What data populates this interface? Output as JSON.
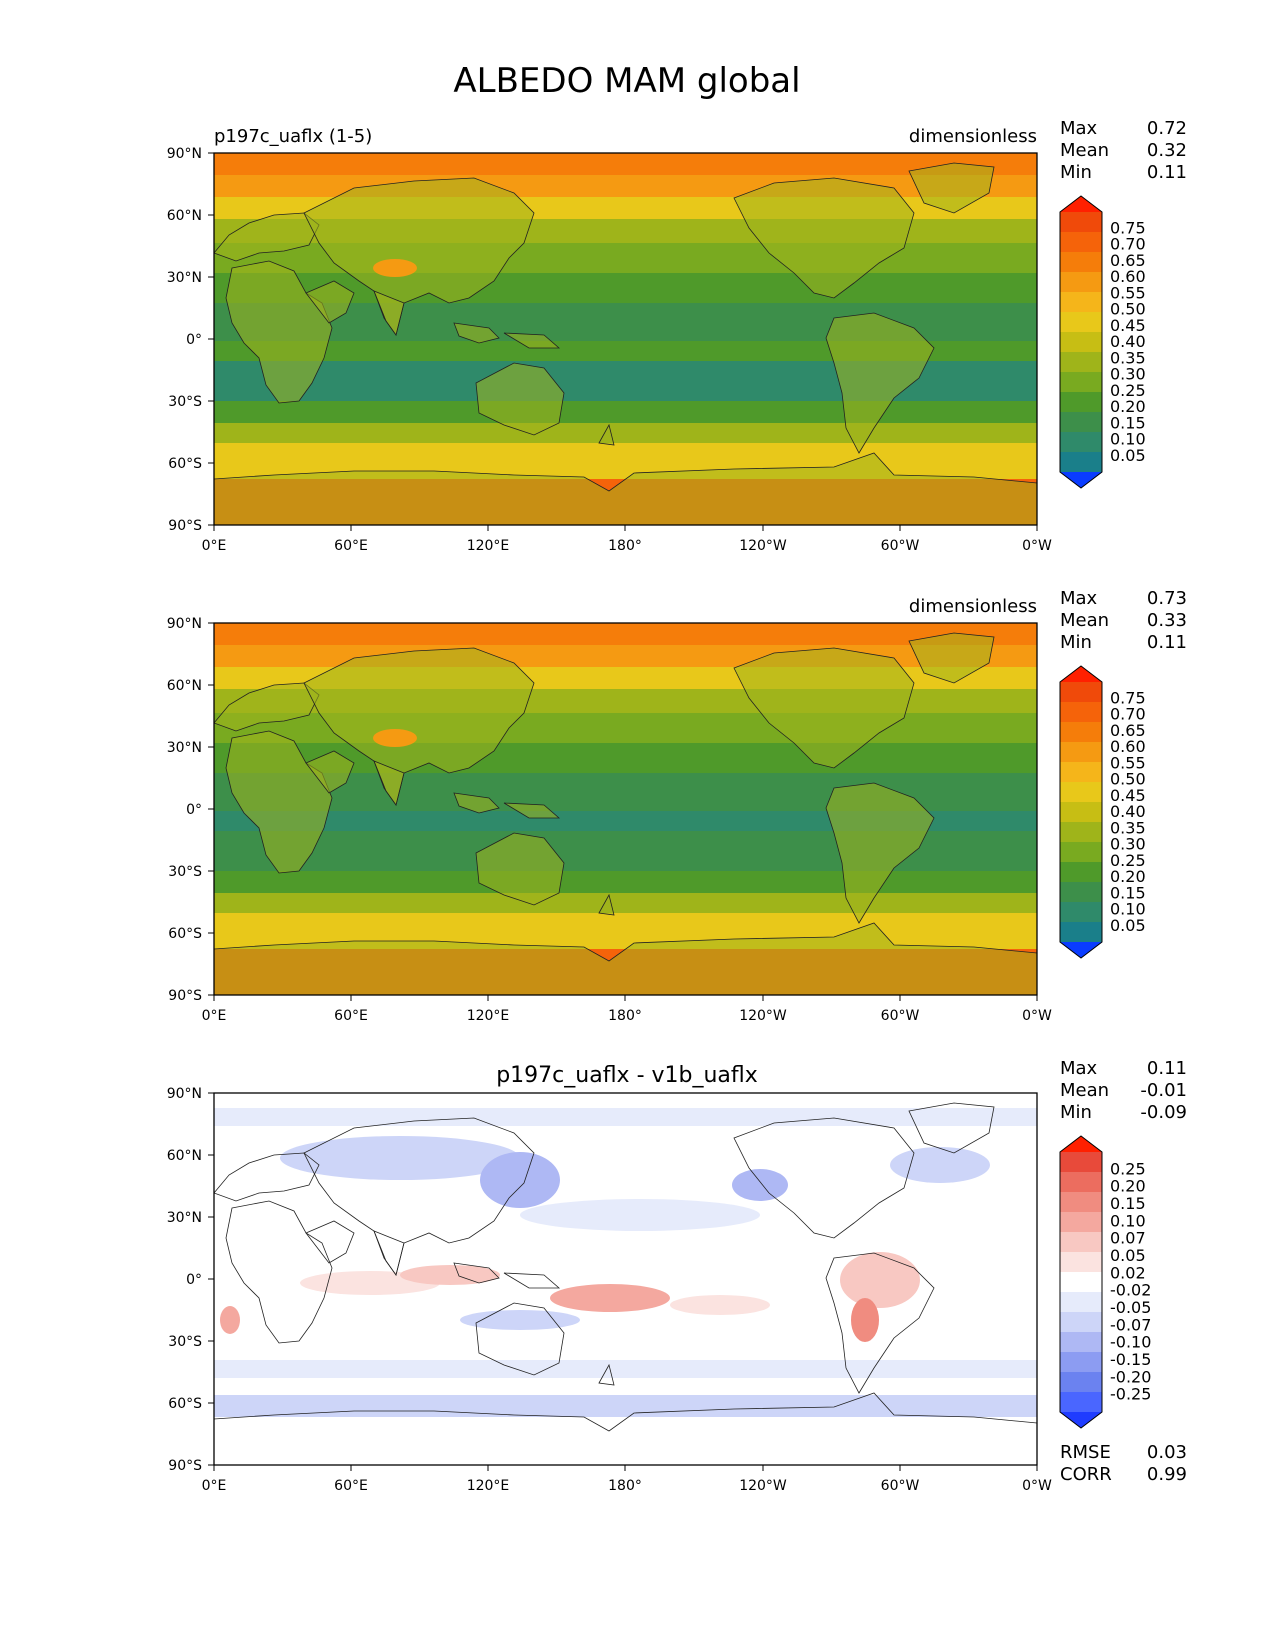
{
  "figure_title": "ALBEDO MAM global",
  "colors": {
    "main": [
      "#0a3cff",
      "#1a7f8a",
      "#2f8a6a",
      "#3d8f4a",
      "#4f9a2a",
      "#79aa20",
      "#9fb41a",
      "#c7be14",
      "#e8c81a",
      "#f5b51a",
      "#f59a12",
      "#f57d0a",
      "#f5630a",
      "#f04a0a",
      "#ff2000"
    ],
    "diff": [
      "#1f3cff",
      "#4a66ff",
      "#6b82f0",
      "#8c9cf2",
      "#aeb8f4",
      "#cdd5f8",
      "#e6ebfb",
      "#ffffff",
      "#fbe3e0",
      "#f8c8c2",
      "#f4a89f",
      "#f08c80",
      "#ec6d5f",
      "#e84a3a",
      "#ff2000"
    ]
  },
  "panels": [
    {
      "id": "test",
      "left_title": "p197c_uaflx (1-5)",
      "center_title": "",
      "units": "dimensionless",
      "stats": [
        {
          "label": "Max",
          "value": "0.72"
        },
        {
          "label": "Mean",
          "value": "0.32"
        },
        {
          "label": "Min",
          "value": "0.11"
        }
      ],
      "colorbar_ticks": [
        "0.75",
        "0.70",
        "0.65",
        "0.60",
        "0.55",
        "0.50",
        "0.45",
        "0.40",
        "0.35",
        "0.30",
        "0.25",
        "0.20",
        "0.15",
        "0.10",
        "0.05"
      ]
    },
    {
      "id": "reference",
      "left_title": "",
      "center_title": "",
      "units": "dimensionless",
      "stats": [
        {
          "label": "Max",
          "value": "0.73"
        },
        {
          "label": "Mean",
          "value": "0.33"
        },
        {
          "label": "Min",
          "value": "0.11"
        }
      ],
      "colorbar_ticks": [
        "0.75",
        "0.70",
        "0.65",
        "0.60",
        "0.55",
        "0.50",
        "0.45",
        "0.40",
        "0.35",
        "0.30",
        "0.25",
        "0.20",
        "0.15",
        "0.10",
        "0.05"
      ]
    },
    {
      "id": "difference",
      "left_title": "",
      "center_title": "p197c_uaflx - v1b_uaflx",
      "units": "",
      "stats": [
        {
          "label": "Max",
          "value": "0.11"
        },
        {
          "label": "Mean",
          "value": "-0.01"
        },
        {
          "label": "Min",
          "value": "-0.09"
        }
      ],
      "colorbar_ticks": [
        "0.25",
        "0.20",
        "0.15",
        "0.10",
        "0.07",
        "0.05",
        "0.02",
        "-0.02",
        "-0.05",
        "-0.07",
        "-0.10",
        "-0.15",
        "-0.20",
        "-0.25"
      ],
      "extra_stats": [
        {
          "label": "RMSE",
          "value": "0.03"
        },
        {
          "label": "CORR",
          "value": "0.99"
        }
      ]
    }
  ],
  "chart_data": [
    {
      "type": "heatmap",
      "title": "p197c_uaflx (1-5)",
      "units": "dimensionless",
      "xlim": [
        0,
        360
      ],
      "ylim": [
        -90,
        90
      ],
      "x_ticks": [
        "0°E",
        "60°E",
        "120°E",
        "180°",
        "120°W",
        "60°W",
        "0°W"
      ],
      "y_ticks": [
        "90°N",
        "60°N",
        "30°N",
        "0°",
        "30°S",
        "60°S",
        "90°S"
      ],
      "zonal_profile": {
        "lat": [
          90,
          75,
          60,
          45,
          30,
          15,
          0,
          -15,
          -30,
          -45,
          -60,
          -70,
          -80,
          -90
        ],
        "albedo": [
          0.65,
          0.55,
          0.45,
          0.35,
          0.25,
          0.22,
          0.25,
          0.22,
          0.25,
          0.35,
          0.45,
          0.62,
          0.68,
          0.68
        ]
      },
      "max": 0.72,
      "mean": 0.32,
      "min": 0.11
    },
    {
      "type": "heatmap",
      "title": "",
      "units": "dimensionless",
      "xlim": [
        0,
        360
      ],
      "ylim": [
        -90,
        90
      ],
      "x_ticks": [
        "0°E",
        "60°E",
        "120°E",
        "180°",
        "120°W",
        "60°W",
        "0°W"
      ],
      "y_ticks": [
        "90°N",
        "60°N",
        "30°N",
        "0°",
        "30°S",
        "60°S",
        "90°S"
      ],
      "zonal_profile": {
        "lat": [
          90,
          75,
          60,
          45,
          30,
          15,
          0,
          -15,
          -30,
          -45,
          -60,
          -70,
          -80,
          -90
        ],
        "albedo": [
          0.66,
          0.56,
          0.46,
          0.36,
          0.26,
          0.22,
          0.25,
          0.22,
          0.26,
          0.36,
          0.46,
          0.63,
          0.68,
          0.68
        ]
      },
      "max": 0.73,
      "mean": 0.33,
      "min": 0.11
    },
    {
      "type": "heatmap",
      "title": "p197c_uaflx - v1b_uaflx",
      "units": "",
      "xlim": [
        0,
        360
      ],
      "ylim": [
        -90,
        90
      ],
      "x_ticks": [
        "0°E",
        "60°E",
        "120°E",
        "180°",
        "120°W",
        "60°W",
        "0°W"
      ],
      "y_ticks": [
        "90°N",
        "60°N",
        "30°N",
        "0°",
        "30°S",
        "60°S",
        "90°S"
      ],
      "max": 0.11,
      "mean": -0.01,
      "min": -0.09,
      "rmse": 0.03,
      "corr": 0.99
    }
  ]
}
